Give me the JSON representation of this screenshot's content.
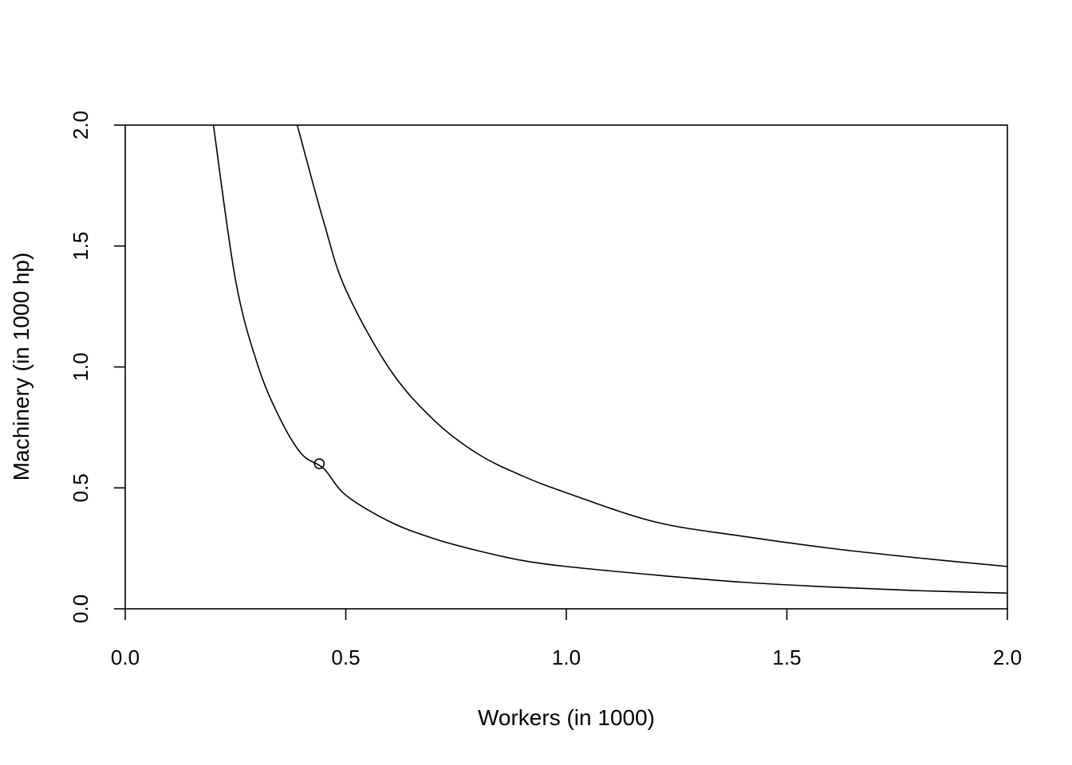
{
  "chart_data": {
    "type": "line",
    "title": "",
    "xlabel": "Workers (in 1000)",
    "ylabel": "Machinery (in 1000 hp)",
    "xlim": [
      0,
      2
    ],
    "ylim": [
      0,
      2
    ],
    "x_ticks": [
      "0.0",
      "0.5",
      "1.0",
      "1.5",
      "2.0"
    ],
    "y_ticks": [
      "0.0",
      "0.5",
      "1.0",
      "1.5",
      "2.0"
    ],
    "grid": false,
    "legend": "none",
    "line_color": "#000000",
    "series": [
      {
        "x": [
          0.2,
          0.25,
          0.3,
          0.35,
          0.4,
          0.45,
          0.5,
          0.6,
          0.7,
          0.8,
          0.9,
          1.0,
          1.2,
          1.4,
          1.6,
          1.8,
          2.0
        ],
        "y": [
          2.0,
          1.36,
          1.01,
          0.79,
          0.64,
          0.58,
          0.47,
          0.36,
          0.29,
          0.24,
          0.2,
          0.175,
          0.14,
          0.11,
          0.09,
          0.075,
          0.065
        ]
      },
      {
        "x": [
          0.39,
          0.45,
          0.5,
          0.6,
          0.7,
          0.8,
          0.9,
          1.0,
          1.2,
          1.4,
          1.6,
          1.8,
          2.0
        ],
        "y": [
          2.0,
          1.6,
          1.32,
          0.99,
          0.78,
          0.64,
          0.55,
          0.48,
          0.36,
          0.3,
          0.25,
          0.21,
          0.175
        ]
      }
    ],
    "points": [
      {
        "x": 0.44,
        "y": 0.6
      }
    ]
  }
}
